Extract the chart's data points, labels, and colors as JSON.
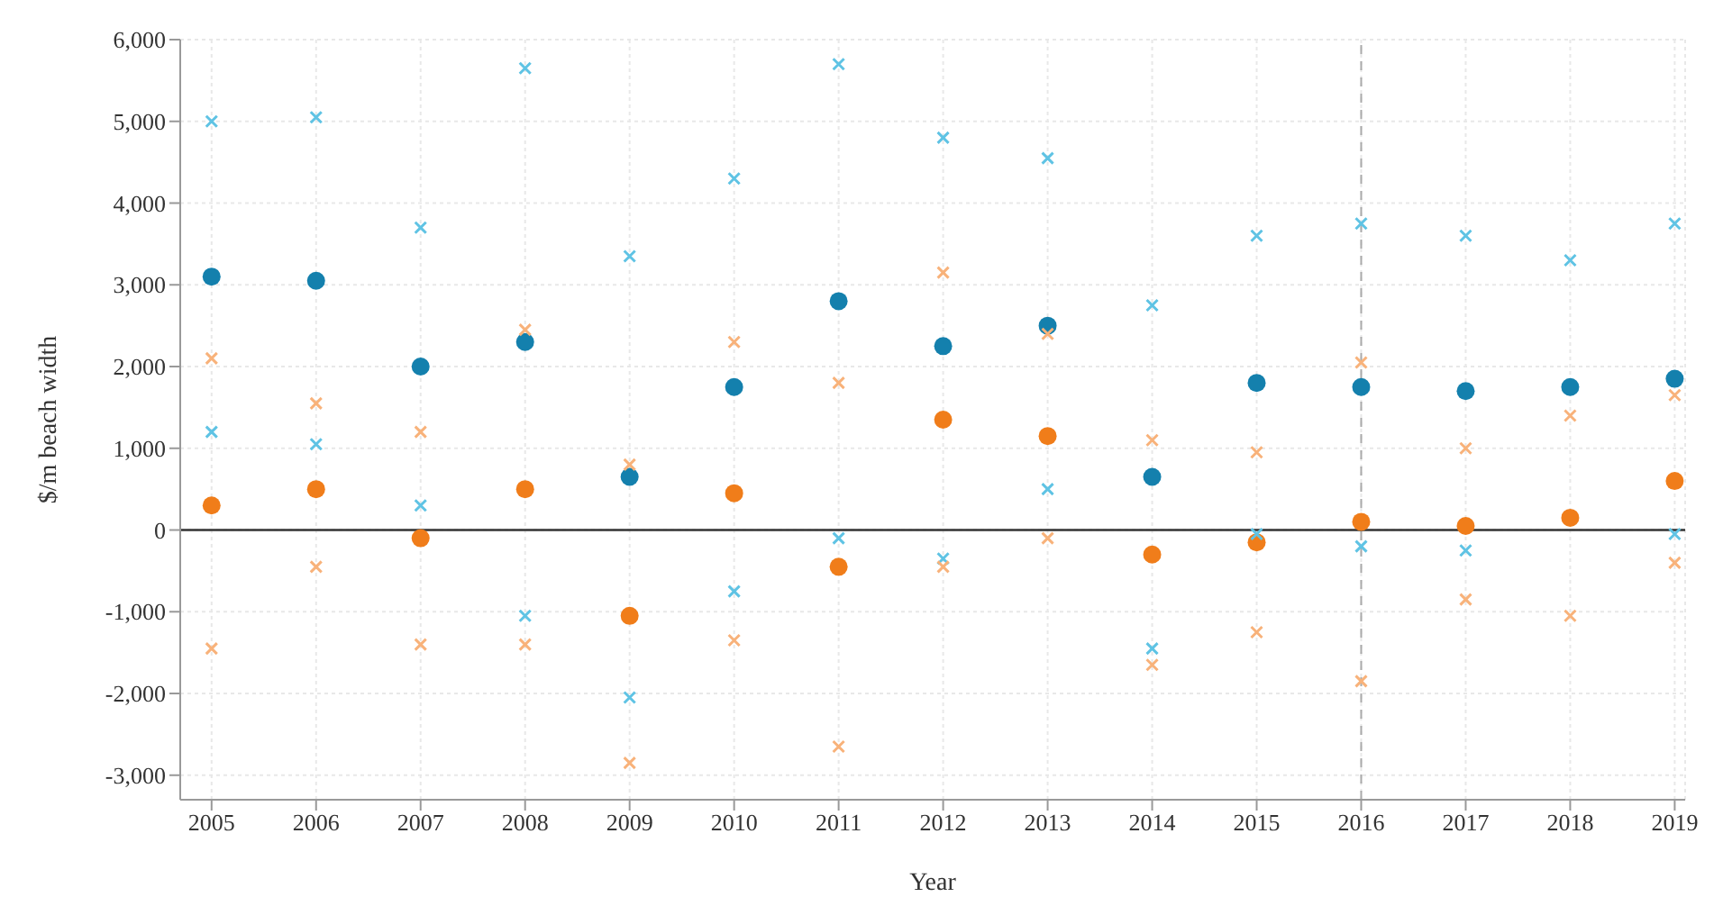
{
  "chart_data": {
    "type": "scatter",
    "xlabel": "Year",
    "ylabel": "$/m beach width",
    "x": [
      2005,
      2006,
      2007,
      2008,
      2009,
      2010,
      2011,
      2012,
      2013,
      2014,
      2015,
      2016,
      2017,
      2018,
      2019
    ],
    "xlim": [
      2004.7,
      2019.1
    ],
    "xticks": [
      2005,
      2006,
      2007,
      2008,
      2009,
      2010,
      2011,
      2012,
      2013,
      2014,
      2015,
      2016,
      2017,
      2018,
      2019
    ],
    "ylim": [
      -3300,
      6000
    ],
    "yticks": [
      {
        "value": -3000,
        "label": "-3,000"
      },
      {
        "value": -2000,
        "label": "-2,000"
      },
      {
        "value": -1000,
        "label": "-1,000"
      },
      0,
      {
        "value": 1000,
        "label": "1,000"
      },
      {
        "value": 2000,
        "label": "2,000"
      },
      {
        "value": 3000,
        "label": "3,000"
      },
      {
        "value": 4000,
        "label": "4,000"
      },
      {
        "value": 5000,
        "label": "5,000"
      },
      {
        "value": 6000,
        "label": "6,000"
      }
    ],
    "grid": true,
    "legend": false,
    "ref_lines": [
      {
        "axis": "y",
        "value": 0,
        "color": "#333333",
        "line_style": "solid"
      },
      {
        "axis": "x",
        "value": 2016,
        "color": "#aaaaaa",
        "line_style": "dashed"
      }
    ],
    "series": [
      {
        "color": "#1480ad",
        "marker": "circle",
        "values": [
          3100,
          3050,
          2000,
          2300,
          650,
          1750,
          2800,
          2250,
          2500,
          650,
          1800,
          1750,
          1700,
          1750,
          1850
        ]
      },
      {
        "color": "#f07d1a",
        "marker": "circle",
        "values": [
          300,
          500,
          -100,
          500,
          -1050,
          450,
          -450,
          1350,
          1150,
          -300,
          -150,
          100,
          50,
          150,
          600
        ]
      },
      {
        "color": "#5fc3e4",
        "marker": "cross",
        "values": [
          5000,
          5050,
          3700,
          5650,
          3350,
          4300,
          5700,
          4800,
          4550,
          2750,
          3600,
          3750,
          3600,
          3300,
          3750
        ]
      },
      {
        "color": "#5fc3e4",
        "marker": "cross",
        "values": [
          1200,
          1050,
          300,
          -1050,
          -2050,
          -750,
          -100,
          -350,
          500,
          -1450,
          -50,
          -200,
          -250,
          null,
          -50
        ]
      },
      {
        "color": "#f8b27a",
        "marker": "cross",
        "values": [
          2100,
          1550,
          1200,
          2450,
          800,
          2300,
          1800,
          3150,
          2400,
          1100,
          950,
          2050,
          1000,
          1400,
          1650
        ]
      },
      {
        "color": "#f8b27a",
        "marker": "cross",
        "values": [
          -1450,
          -450,
          -1400,
          -1400,
          -2850,
          -1350,
          -2650,
          -450,
          -100,
          -1650,
          -1250,
          -1850,
          -850,
          -1050,
          -400
        ]
      }
    ]
  }
}
